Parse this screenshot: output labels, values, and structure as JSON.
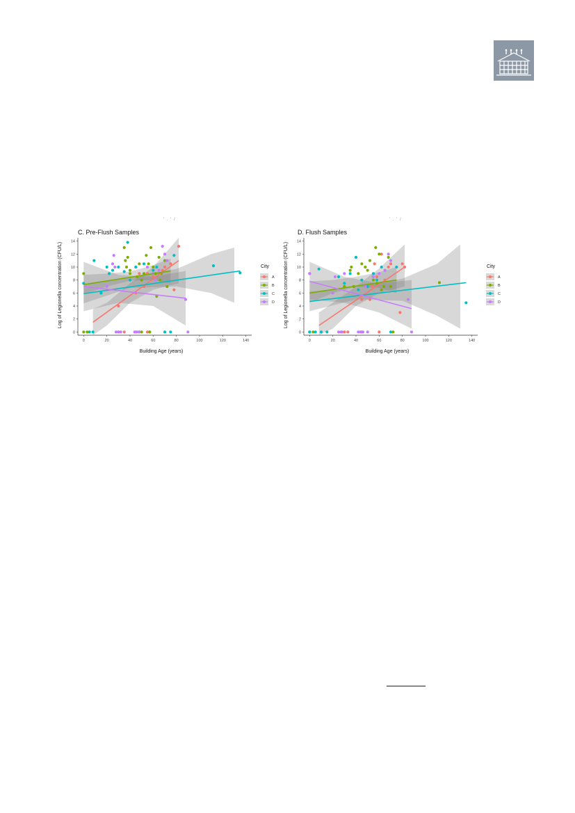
{
  "logo": {
    "icon": "building-icon",
    "color": "#8c98a6"
  },
  "shared": {
    "ylabel": "Log of Legionella concentration (CFU/L)",
    "xlabel": "Building Age (years)",
    "legend_title": "City",
    "cities": [
      "A",
      "B",
      "C",
      "D"
    ],
    "colors": {
      "A": "#f8766d",
      "B": "#7cae00",
      "C": "#00bfc4",
      "D": "#c77cff"
    }
  },
  "chart_data": [
    {
      "type": "scatter",
      "title": "C. Pre-Flush Samples",
      "xlabel": "Building Age (years)",
      "ylabel": "Log of Legionella concentration (CFU/L)",
      "xlim": [
        -5,
        145
      ],
      "ylim": [
        -0.5,
        14.5
      ],
      "xticks": [
        0,
        20,
        40,
        60,
        80,
        100,
        120,
        140
      ],
      "yticks": [
        0,
        2,
        4,
        6,
        8,
        10,
        12,
        14
      ],
      "legend_position": "right",
      "series": [
        {
          "name": "A",
          "points": [
            [
              30,
              4
            ],
            [
              45,
              6
            ],
            [
              52,
              7
            ],
            [
              60,
              8.5
            ],
            [
              65,
              9
            ],
            [
              70,
              10
            ],
            [
              75,
              10.5
            ],
            [
              78,
              6.5
            ],
            [
              82,
              13.2
            ],
            [
              55,
              9
            ],
            [
              30,
              0
            ],
            [
              35,
              0
            ],
            [
              55,
              0
            ],
            [
              57,
              0
            ],
            [
              48,
              9
            ],
            [
              68,
              9.5
            ]
          ],
          "fit": {
            "x": [
              8,
              82
            ],
            "y": [
              1.5,
              11
            ]
          },
          "ci_x": [
            8,
            20,
            40,
            60,
            82
          ],
          "ci_lo": [
            -0.5,
            1,
            4.5,
            6.5,
            7.5
          ],
          "ci_hi": [
            3.5,
            4.5,
            7.5,
            10,
            14.5
          ]
        },
        {
          "name": "B",
          "points": [
            [
              0,
              9
            ],
            [
              0,
              0
            ],
            [
              3,
              0
            ],
            [
              35,
              13
            ],
            [
              36,
              11
            ],
            [
              37,
              10
            ],
            [
              38,
              11.5
            ],
            [
              40,
              9
            ],
            [
              45,
              10
            ],
            [
              48,
              10.5
            ],
            [
              50,
              8
            ],
            [
              52,
              9
            ],
            [
              54,
              11.8
            ],
            [
              56,
              10.5
            ],
            [
              58,
              13
            ],
            [
              60,
              10
            ],
            [
              62,
              9
            ],
            [
              63,
              5.5
            ],
            [
              65,
              11.5
            ],
            [
              66,
              8
            ],
            [
              67,
              9
            ],
            [
              70,
              11
            ],
            [
              72,
              7
            ],
            [
              50,
              0
            ],
            [
              57,
              0
            ],
            [
              40,
              9.5
            ],
            [
              46,
              8.5
            ]
          ],
          "fit": {
            "x": [
              0,
              75
            ],
            "y": [
              7.3,
              9.4
            ]
          },
          "ci_x": [
            0,
            20,
            40,
            60,
            75
          ],
          "ci_lo": [
            5.8,
            7.0,
            7.9,
            8.0,
            7.5
          ],
          "ci_hi": [
            8.8,
            9.0,
            9.3,
            10.3,
            11.3
          ]
        },
        {
          "name": "C",
          "points": [
            [
              0,
              7.5
            ],
            [
              5,
              0
            ],
            [
              8,
              0
            ],
            [
              9,
              11
            ],
            [
              15,
              6
            ],
            [
              20,
              10
            ],
            [
              22,
              9
            ],
            [
              25,
              9.5
            ],
            [
              30,
              10
            ],
            [
              35,
              9.3
            ],
            [
              38,
              13.8
            ],
            [
              40,
              8
            ],
            [
              45,
              10
            ],
            [
              48,
              0
            ],
            [
              52,
              10.5
            ],
            [
              60,
              9.5
            ],
            [
              63,
              10
            ],
            [
              70,
              0
            ],
            [
              75,
              0
            ],
            [
              78,
              11.8
            ],
            [
              112,
              10.2
            ],
            [
              135,
              9.1
            ]
          ],
          "fit": {
            "x": [
              0,
              135
            ],
            "y": [
              5.9,
              9.4
            ]
          },
          "ci_x": [
            0,
            40,
            80,
            110,
            130
          ],
          "ci_lo": [
            4.4,
            6.8,
            7.0,
            6.0,
            4.5
          ],
          "ci_hi": [
            7.4,
            8.5,
            9.7,
            12.0,
            13.0
          ]
        },
        {
          "name": "D",
          "points": [
            [
              20,
              7
            ],
            [
              25,
              10.5
            ],
            [
              26,
              11.8
            ],
            [
              27,
              10
            ],
            [
              28,
              0
            ],
            [
              30,
              0
            ],
            [
              32,
              0
            ],
            [
              44,
              0
            ],
            [
              45,
              0
            ],
            [
              46,
              0
            ],
            [
              48,
              0
            ],
            [
              60,
              9
            ],
            [
              65,
              9.5
            ],
            [
              68,
              13.2
            ],
            [
              70,
              12
            ],
            [
              72,
              11
            ],
            [
              88,
              5
            ],
            [
              90,
              0
            ],
            [
              55,
              10
            ],
            [
              62,
              8
            ]
          ],
          "fit": {
            "x": [
              0,
              88
            ],
            "y": [
              7.0,
              5.2
            ]
          },
          "ci_x": [
            0,
            30,
            60,
            88
          ],
          "ci_lo": [
            3.2,
            4.5,
            4.0,
            1.0
          ],
          "ci_hi": [
            10.8,
            8.8,
            8.5,
            9.4
          ]
        }
      ]
    },
    {
      "type": "scatter",
      "title": "D. Flush Samples",
      "xlabel": "Building Age (years)",
      "ylabel": "Log of Legionella concentration (CFU/L)",
      "xlim": [
        -5,
        145
      ],
      "ylim": [
        -0.5,
        14.5
      ],
      "xticks": [
        0,
        20,
        40,
        60,
        80,
        100,
        120,
        140
      ],
      "yticks": [
        0,
        2,
        4,
        6,
        8,
        10,
        12,
        14
      ],
      "legend_position": "right",
      "series": [
        {
          "name": "A",
          "points": [
            [
              30,
              0
            ],
            [
              33,
              0
            ],
            [
              45,
              5
            ],
            [
              52,
              5
            ],
            [
              56,
              10.5
            ],
            [
              58,
              8.5
            ],
            [
              62,
              12
            ],
            [
              65,
              8
            ],
            [
              68,
              10
            ],
            [
              70,
              10.5
            ],
            [
              78,
              3
            ],
            [
              80,
              10.5
            ],
            [
              82,
              10
            ],
            [
              60,
              0
            ],
            [
              54,
              7
            ]
          ],
          "fit": {
            "x": [
              8,
              82
            ],
            "y": [
              1,
              10
            ]
          },
          "ci_x": [
            8,
            20,
            40,
            60,
            82
          ],
          "ci_lo": [
            -0.5,
            0.5,
            4,
            6,
            7
          ],
          "ci_hi": [
            3,
            4.5,
            7,
            9.8,
            13.5
          ]
        },
        {
          "name": "B",
          "points": [
            [
              0,
              9
            ],
            [
              0,
              0
            ],
            [
              3,
              0
            ],
            [
              30,
              7
            ],
            [
              35,
              9.5
            ],
            [
              36,
              10
            ],
            [
              38,
              7
            ],
            [
              40,
              11.5
            ],
            [
              42,
              9
            ],
            [
              45,
              10.5
            ],
            [
              48,
              10
            ],
            [
              50,
              9.5
            ],
            [
              52,
              11
            ],
            [
              55,
              8
            ],
            [
              57,
              13
            ],
            [
              58,
              7.5
            ],
            [
              60,
              12
            ],
            [
              62,
              6.5
            ],
            [
              64,
              7
            ],
            [
              68,
              11.5
            ],
            [
              70,
              7
            ],
            [
              72,
              0
            ],
            [
              112,
              7.6
            ]
          ],
          "fit": {
            "x": [
              0,
              75
            ],
            "y": [
              6,
              8
            ]
          },
          "ci_x": [
            0,
            20,
            40,
            60,
            75
          ],
          "ci_lo": [
            4.5,
            6.0,
            7.0,
            6.8,
            6.0
          ],
          "ci_hi": [
            7.8,
            8.0,
            8.5,
            9.2,
            10.0
          ]
        },
        {
          "name": "C",
          "points": [
            [
              0,
              0
            ],
            [
              5,
              0
            ],
            [
              8,
              9.7
            ],
            [
              10,
              0
            ],
            [
              15,
              0
            ],
            [
              25,
              8.5
            ],
            [
              30,
              7.5
            ],
            [
              35,
              9
            ],
            [
              40,
              11.5
            ],
            [
              42,
              6.5
            ],
            [
              45,
              8
            ],
            [
              50,
              7
            ],
            [
              55,
              9
            ],
            [
              58,
              8
            ],
            [
              62,
              10
            ],
            [
              65,
              9.5
            ],
            [
              70,
              0
            ],
            [
              75,
              10
            ],
            [
              135,
              4.5
            ]
          ],
          "fit": {
            "x": [
              0,
              135
            ],
            "y": [
              4.7,
              7.6
            ]
          },
          "ci_x": [
            0,
            40,
            80,
            110,
            130
          ],
          "ci_lo": [
            3.2,
            5.0,
            4.8,
            2.5,
            0.5
          ],
          "ci_hi": [
            6.2,
            7.0,
            8.2,
            10.5,
            13.5
          ]
        },
        {
          "name": "D",
          "points": [
            [
              0,
              9
            ],
            [
              20,
              6
            ],
            [
              22,
              8.5
            ],
            [
              25,
              0
            ],
            [
              27,
              0
            ],
            [
              28,
              0
            ],
            [
              30,
              9
            ],
            [
              42,
              0
            ],
            [
              44,
              0
            ],
            [
              45,
              0
            ],
            [
              46,
              0
            ],
            [
              48,
              7
            ],
            [
              50,
              0
            ],
            [
              60,
              9
            ],
            [
              65,
              9.5
            ],
            [
              68,
              12
            ],
            [
              70,
              11
            ],
            [
              85,
              5
            ],
            [
              88,
              0
            ],
            [
              55,
              8.5
            ]
          ],
          "fit": {
            "x": [
              0,
              88
            ],
            "y": [
              7.8,
              3.6
            ]
          },
          "ci_x": [
            0,
            30,
            60,
            88
          ],
          "ci_lo": [
            5.0,
            4.5,
            3.0,
            0.5
          ],
          "ci_hi": [
            10.8,
            8.5,
            7.5,
            8.0
          ]
        }
      ]
    }
  ]
}
